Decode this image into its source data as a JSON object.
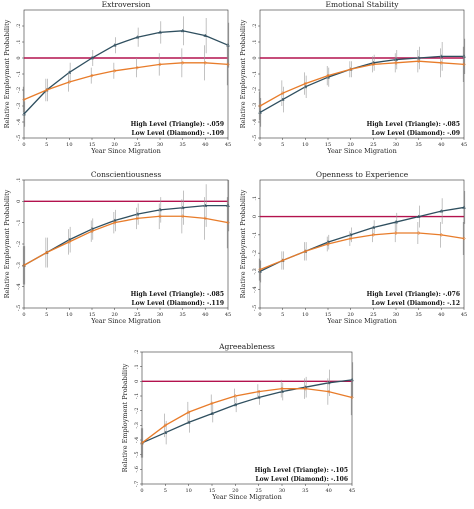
{
  "chart_data": [
    {
      "type": "line",
      "title": "Extroversion",
      "xlabel": "Year Since Migration",
      "ylabel": "Relative Employment Probability",
      "x": [
        0,
        5,
        10,
        15,
        20,
        25,
        30,
        35,
        40,
        45
      ],
      "xlim": [
        0,
        45
      ],
      "ylim": [
        -0.5,
        0.3
      ],
      "yticks": [
        0.2,
        0.1,
        0,
        -0.1,
        -0.2,
        -0.3,
        -0.4,
        -0.5
      ],
      "reference_line": 0,
      "series": [
        {
          "values": [
            -0.35,
            -0.2,
            -0.09,
            0.0,
            0.08,
            0.13,
            0.16,
            0.17,
            0.14,
            0.08
          ],
          "ci": [
            0.08,
            0.07,
            0.06,
            0.05,
            0.05,
            0.06,
            0.07,
            0.09,
            0.11,
            0.14
          ],
          "color": "#2f4f5f",
          "marker": "triangle"
        },
        {
          "values": [
            -0.26,
            -0.2,
            -0.15,
            -0.11,
            -0.08,
            -0.06,
            -0.04,
            -0.03,
            -0.03,
            -0.04
          ],
          "ci": [
            0.08,
            0.07,
            0.06,
            0.05,
            0.05,
            0.06,
            0.07,
            0.09,
            0.11,
            0.13
          ],
          "color": "#e87c2a",
          "marker": "diamond"
        }
      ],
      "notes": [
        "High Level (Triangle): -.059",
        "Low Level (Diamond): -.109"
      ]
    },
    {
      "type": "line",
      "title": "Emotional Stability",
      "xlabel": "Year Since Migration",
      "ylabel": "Relative Employment Probability",
      "x": [
        0,
        5,
        10,
        15,
        20,
        25,
        30,
        35,
        40,
        45
      ],
      "xlim": [
        0,
        45
      ],
      "ylim": [
        -0.5,
        0.3
      ],
      "yticks": [
        0.2,
        0.1,
        0,
        -0.1,
        -0.2,
        -0.3,
        -0.4,
        -0.5
      ],
      "reference_line": 0,
      "series": [
        {
          "values": [
            -0.34,
            -0.26,
            -0.18,
            -0.12,
            -0.07,
            -0.03,
            -0.01,
            0.0,
            0.01,
            0.01
          ],
          "ci": [
            0.09,
            0.08,
            0.07,
            0.06,
            0.05,
            0.05,
            0.06,
            0.07,
            0.09,
            0.11
          ],
          "color": "#2f4f5f",
          "marker": "triangle"
        },
        {
          "values": [
            -0.3,
            -0.22,
            -0.16,
            -0.11,
            -0.07,
            -0.04,
            -0.03,
            -0.02,
            -0.03,
            -0.04
          ],
          "ci": [
            0.09,
            0.08,
            0.07,
            0.06,
            0.05,
            0.05,
            0.06,
            0.07,
            0.09,
            0.11
          ],
          "color": "#e87c2a",
          "marker": "diamond"
        }
      ],
      "notes": [
        "High Level (Triangle): -.085",
        "Low Level (Diamond): -.09"
      ]
    },
    {
      "type": "line",
      "title": "Conscientiousness",
      "xlabel": "Year Since Migration",
      "ylabel": "Relative Employment Probability",
      "x": [
        0,
        5,
        10,
        15,
        20,
        25,
        30,
        35,
        40,
        45
      ],
      "xlim": [
        0,
        45
      ],
      "ylim": [
        -0.5,
        0.1
      ],
      "yticks": [
        0.1,
        0,
        -0.1,
        -0.2,
        -0.3,
        -0.4,
        -0.5
      ],
      "reference_line": 0,
      "series": [
        {
          "values": [
            -0.3,
            -0.24,
            -0.18,
            -0.13,
            -0.09,
            -0.06,
            -0.04,
            -0.03,
            -0.02,
            -0.02
          ],
          "ci": [
            0.09,
            0.07,
            0.06,
            0.05,
            0.05,
            0.05,
            0.06,
            0.08,
            0.1,
            0.12
          ],
          "color": "#2f4f5f",
          "marker": "triangle"
        },
        {
          "values": [
            -0.3,
            -0.24,
            -0.19,
            -0.14,
            -0.1,
            -0.08,
            -0.07,
            -0.07,
            -0.08,
            -0.1
          ],
          "ci": [
            0.09,
            0.07,
            0.06,
            0.05,
            0.05,
            0.05,
            0.06,
            0.08,
            0.1,
            0.12
          ],
          "color": "#e87c2a",
          "marker": "diamond"
        }
      ],
      "notes": [
        "High Level (Triangle): -.085",
        "Low Level (Diamond): -.119"
      ]
    },
    {
      "type": "line",
      "title": "Openness to Experience",
      "xlabel": "Year Since Migration",
      "ylabel": "Relative Employment Probability",
      "x": [
        0,
        5,
        10,
        15,
        20,
        25,
        30,
        35,
        40,
        45
      ],
      "xlim": [
        0,
        45
      ],
      "ylim": [
        -0.5,
        0.2
      ],
      "yticks": [
        0.1,
        0,
        -0.1,
        -0.2,
        -0.3,
        -0.4,
        -0.5
      ],
      "reference_line": 0,
      "series": [
        {
          "values": [
            -0.3,
            -0.24,
            -0.19,
            -0.14,
            -0.1,
            -0.06,
            -0.03,
            0.0,
            0.03,
            0.05
          ],
          "ci": [
            0.06,
            0.05,
            0.05,
            0.04,
            0.04,
            0.04,
            0.05,
            0.06,
            0.07,
            0.09
          ],
          "color": "#2f4f5f",
          "marker": "triangle"
        },
        {
          "values": [
            -0.29,
            -0.24,
            -0.19,
            -0.15,
            -0.12,
            -0.1,
            -0.09,
            -0.09,
            -0.1,
            -0.12
          ],
          "ci": [
            0.06,
            0.05,
            0.05,
            0.04,
            0.04,
            0.04,
            0.05,
            0.06,
            0.07,
            0.09
          ],
          "color": "#e87c2a",
          "marker": "diamond"
        }
      ],
      "notes": [
        "High Level (Triangle): -.076",
        "Low Level (Diamond): -.12"
      ]
    },
    {
      "type": "line",
      "title": "Agreeableness",
      "xlabel": "Year Since Migration",
      "ylabel": "Relative Employment Probability",
      "x": [
        0,
        5,
        10,
        15,
        20,
        25,
        30,
        35,
        40,
        45
      ],
      "xlim": [
        0,
        45
      ],
      "ylim": [
        -0.7,
        0.2
      ],
      "yticks": [
        0.2,
        0.1,
        0,
        -0.1,
        -0.2,
        -0.3,
        -0.4,
        -0.5,
        -0.6,
        -0.7
      ],
      "reference_line": 0,
      "series": [
        {
          "values": [
            -0.42,
            -0.35,
            -0.28,
            -0.22,
            -0.16,
            -0.11,
            -0.07,
            -0.04,
            -0.01,
            0.01
          ],
          "ci": [
            0.1,
            0.08,
            0.07,
            0.06,
            0.05,
            0.05,
            0.06,
            0.07,
            0.09,
            0.12
          ],
          "color": "#2f4f5f",
          "marker": "triangle"
        },
        {
          "values": [
            -0.42,
            -0.3,
            -0.21,
            -0.15,
            -0.1,
            -0.07,
            -0.05,
            -0.05,
            -0.07,
            -0.11
          ],
          "ci": [
            0.1,
            0.08,
            0.07,
            0.06,
            0.05,
            0.05,
            0.06,
            0.07,
            0.09,
            0.12
          ],
          "color": "#e87c2a",
          "marker": "diamond"
        }
      ],
      "notes": [
        "High Level (Triangle): -.105",
        "Low Level (Diamond): -.106"
      ]
    }
  ],
  "colors": {
    "reference": "#b3124e",
    "axis": "#333333",
    "ci": "#9a9a9a"
  }
}
